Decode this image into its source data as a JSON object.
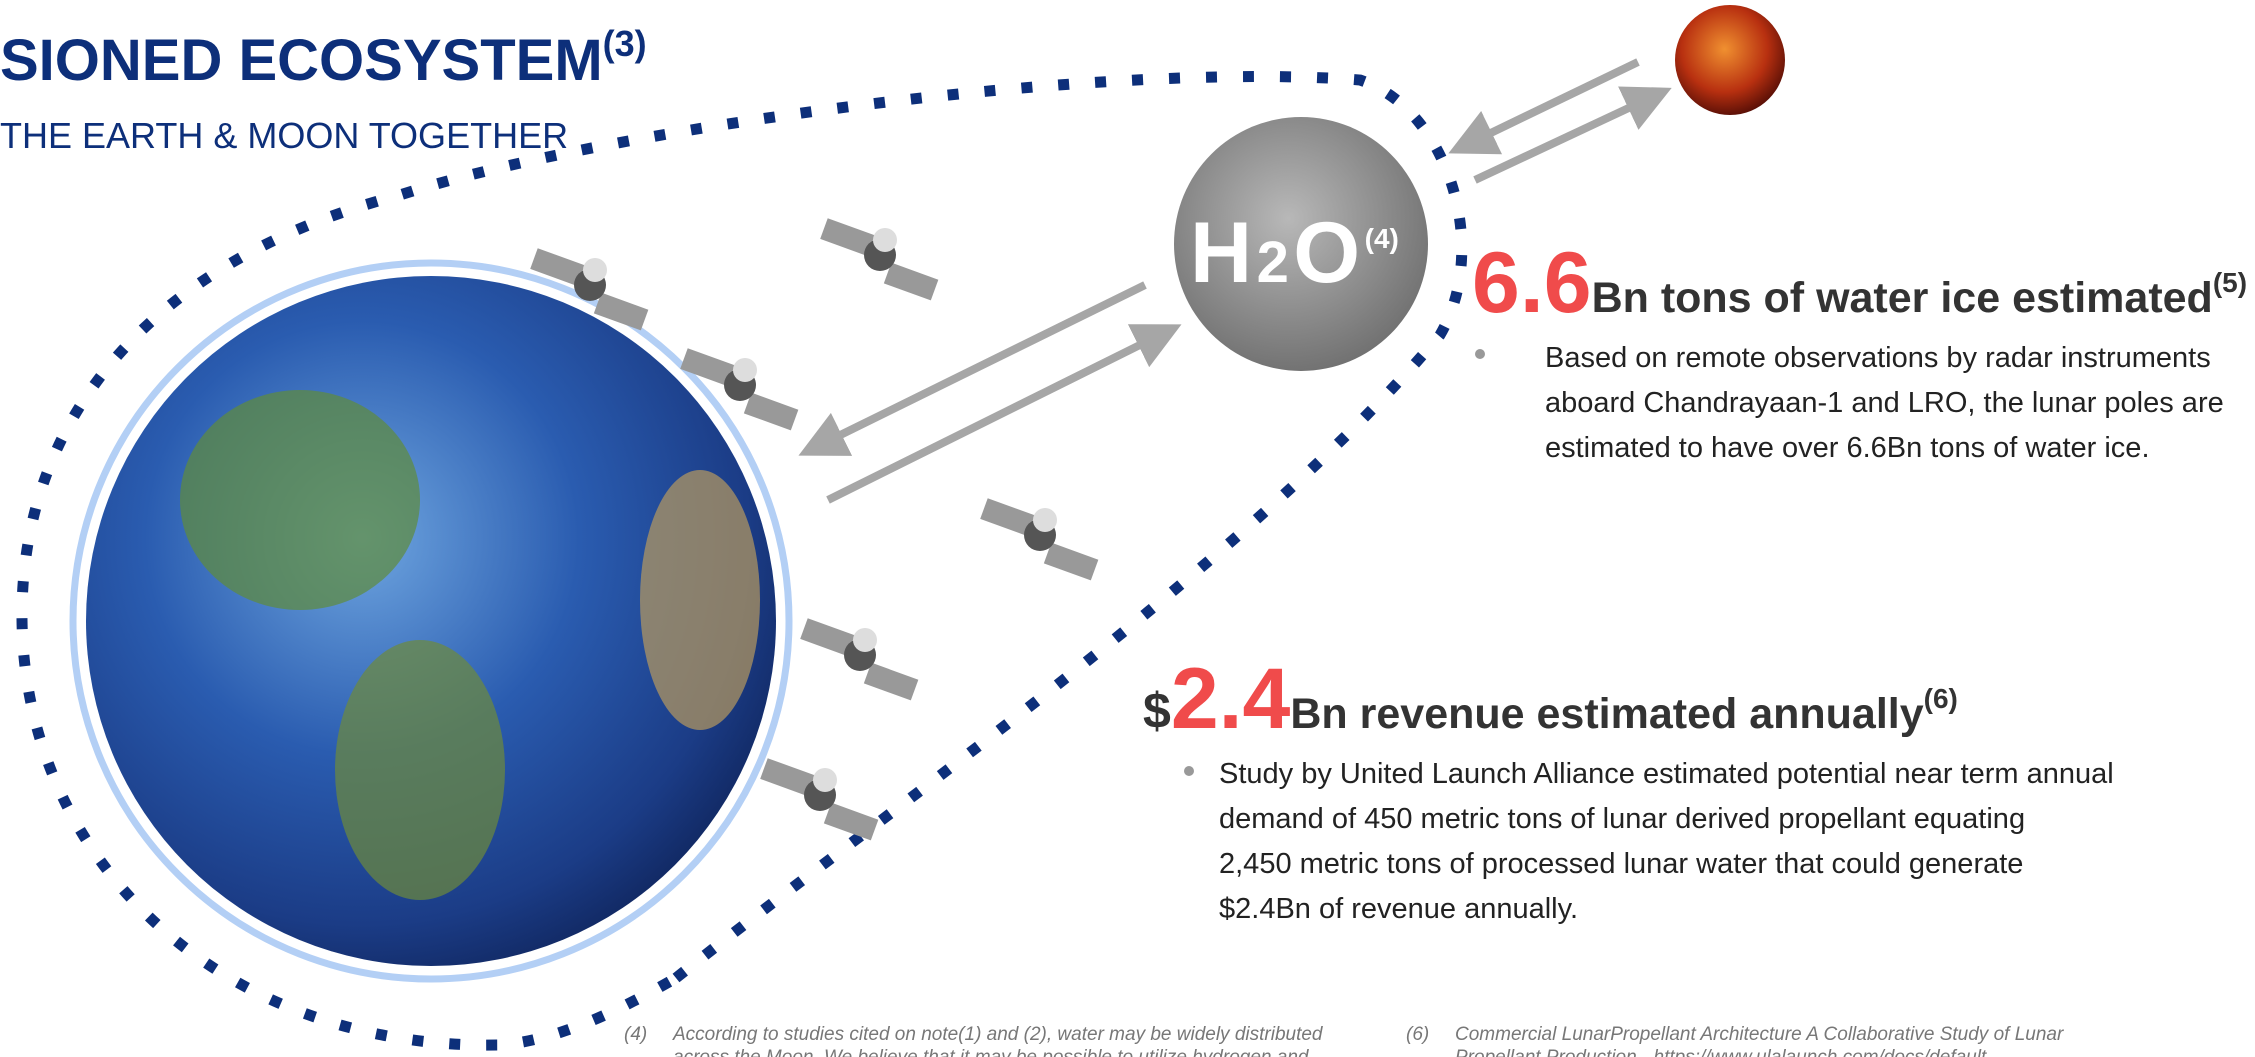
{
  "header": {
    "title": "SIONED ECOSYSTEM",
    "title_note": "(3)",
    "subtitle": "THE EARTH & MOON TOGETHER"
  },
  "moon_label": {
    "h": "H",
    "two": "2",
    "o": "O",
    "note": "(4)"
  },
  "stats": [
    {
      "prefix": null,
      "number": "6.6",
      "text": "Bn tons of water ice estimated",
      "note": "(5)",
      "bullet": [
        "Based on remote observations by radar instruments",
        "aboard Chandrayaan-1 and LRO, the lunar poles are",
        "estimated to have over 6.6Bn tons of water ice."
      ]
    },
    {
      "prefix": "$",
      "number": "2.4",
      "text": "Bn revenue estimated annually",
      "note": "(6)",
      "bullet": [
        "Study by United Launch Alliance estimated potential near term annual",
        "demand of 450 metric tons of lunar derived propellant equating",
        "2,450 metric tons of processed lunar water that could generate",
        "$2.4Bn of revenue annually."
      ]
    }
  ],
  "footnotes": [
    {
      "mark": "(4)",
      "lines": [
        "According to studies cited on note(1) and (2), water may be widely distributed",
        "across the Moon. We believe that it may be possible to utilize hydrogen and"
      ]
    },
    {
      "mark": "(6)",
      "lines": [
        "Commercial LunarPropellant Architecture A Collaborative Study of Lunar",
        "Propellant Production - https://www.ulalaunch.com/docs/default-"
      ]
    }
  ]
}
